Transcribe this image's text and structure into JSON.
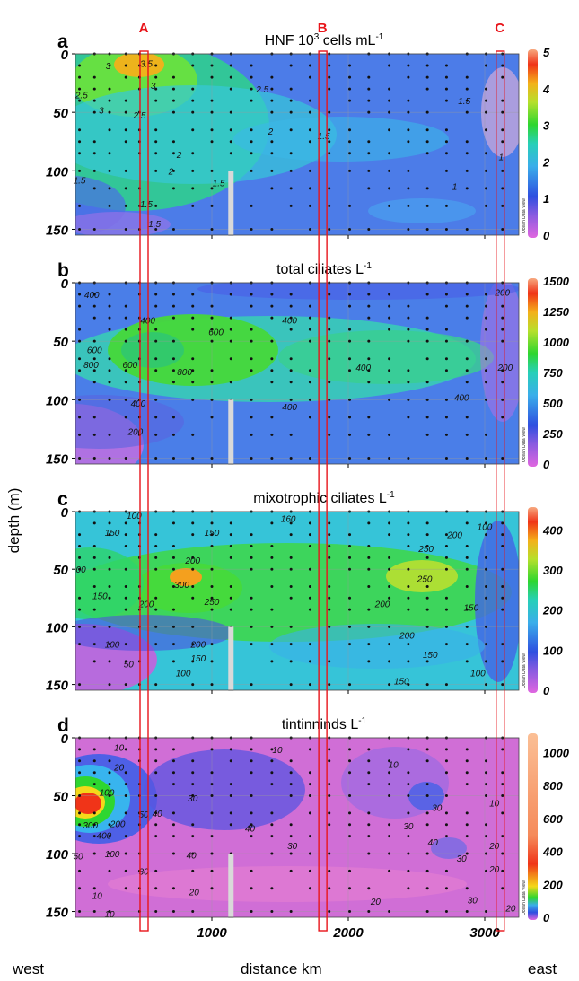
{
  "figure": {
    "ylabel": "depth (m)",
    "xlabel": "distance km",
    "west_label": "west",
    "east_label": "east",
    "watermark": "Ocean Data View",
    "markers": [
      {
        "label": "A",
        "distance_km": 500
      },
      {
        "label": "B",
        "distance_km": 1810
      },
      {
        "label": "C",
        "distance_km": 3110
      }
    ],
    "colors": {
      "marker": "#e8141a",
      "gap_bar": "#d9d9d9",
      "station_dot": "#111111"
    }
  },
  "chart_data": [
    {
      "type": "heatmap",
      "panel": "a",
      "title": "HNF 10",
      "title_sup": "3",
      "title_rest": " cells mL",
      "title_sup2": "-1",
      "xlim": [
        0,
        3250
      ],
      "ylim": [
        155,
        0
      ],
      "xticks": [
        1000,
        2000,
        3000
      ],
      "yticks": [
        0,
        50,
        100,
        150
      ],
      "colorbar_range": [
        0,
        5
      ],
      "colorbar_ticks": [
        0,
        1,
        2,
        3,
        4,
        5
      ],
      "contour_labels": [
        {
          "text": "3",
          "x": 240,
          "y": 10
        },
        {
          "text": "3.5",
          "x": 520,
          "y": 8
        },
        {
          "text": "3",
          "x": 570,
          "y": 27
        },
        {
          "text": "2.5",
          "x": 45,
          "y": 35
        },
        {
          "text": "3",
          "x": 190,
          "y": 48
        },
        {
          "text": "2.5",
          "x": 470,
          "y": 52
        },
        {
          "text": "2.5",
          "x": 1370,
          "y": 30
        },
        {
          "text": "2",
          "x": 1430,
          "y": 66
        },
        {
          "text": "1.5",
          "x": 1820,
          "y": 70
        },
        {
          "text": "1.5",
          "x": 2850,
          "y": 40
        },
        {
          "text": "2",
          "x": 760,
          "y": 86
        },
        {
          "text": "2",
          "x": 700,
          "y": 100
        },
        {
          "text": "1.5",
          "x": 30,
          "y": 108
        },
        {
          "text": "1.5",
          "x": 1050,
          "y": 110
        },
        {
          "text": "1",
          "x": 2780,
          "y": 113
        },
        {
          "text": "1",
          "x": 3120,
          "y": 88
        },
        {
          "text": "1.5",
          "x": 520,
          "y": 128
        },
        {
          "text": "1.5",
          "x": 580,
          "y": 145
        }
      ]
    },
    {
      "type": "heatmap",
      "panel": "b",
      "title": "total ciliates L",
      "title_sup": "-1",
      "xlim": [
        0,
        3250
      ],
      "ylim": [
        155,
        0
      ],
      "xticks": [
        1000,
        2000,
        3000
      ],
      "yticks": [
        0,
        50,
        100,
        150
      ],
      "colorbar_range": [
        0,
        1500
      ],
      "colorbar_ticks": [
        0,
        250,
        500,
        750,
        1000,
        1250,
        1500
      ],
      "contour_labels": [
        {
          "text": "400",
          "x": 120,
          "y": 10
        },
        {
          "text": "400",
          "x": 530,
          "y": 32
        },
        {
          "text": "600",
          "x": 1030,
          "y": 42
        },
        {
          "text": "400",
          "x": 1570,
          "y": 32
        },
        {
          "text": "200",
          "x": 3130,
          "y": 8
        },
        {
          "text": "600",
          "x": 140,
          "y": 57
        },
        {
          "text": "800",
          "x": 115,
          "y": 70
        },
        {
          "text": "600",
          "x": 400,
          "y": 70
        },
        {
          "text": "800",
          "x": 800,
          "y": 76
        },
        {
          "text": "400",
          "x": 2110,
          "y": 72
        },
        {
          "text": "200",
          "x": 3150,
          "y": 72
        },
        {
          "text": "400",
          "x": 460,
          "y": 103
        },
        {
          "text": "400",
          "x": 1570,
          "y": 106
        },
        {
          "text": "400",
          "x": 2830,
          "y": 98
        },
        {
          "text": "200",
          "x": 440,
          "y": 127
        }
      ]
    },
    {
      "type": "heatmap",
      "panel": "c",
      "title": "mixotrophic ciliates L",
      "title_sup": "-1",
      "xlim": [
        0,
        3250
      ],
      "ylim": [
        155,
        0
      ],
      "xticks": [
        1000,
        2000,
        3000
      ],
      "yticks": [
        0,
        50,
        100,
        150
      ],
      "colorbar_range": [
        0,
        450
      ],
      "colorbar_ticks": [
        0,
        100,
        200,
        300,
        400
      ],
      "contour_labels": [
        {
          "text": "100",
          "x": 430,
          "y": 3
        },
        {
          "text": "150",
          "x": 270,
          "y": 18
        },
        {
          "text": "150",
          "x": 1000,
          "y": 18
        },
        {
          "text": "160",
          "x": 1560,
          "y": 6
        },
        {
          "text": "200",
          "x": 2780,
          "y": 20
        },
        {
          "text": "250",
          "x": 2570,
          "y": 32
        },
        {
          "text": "100",
          "x": 3000,
          "y": 13
        },
        {
          "text": "00",
          "x": 40,
          "y": 50
        },
        {
          "text": "200",
          "x": 860,
          "y": 42
        },
        {
          "text": "250",
          "x": 2560,
          "y": 58
        },
        {
          "text": "150",
          "x": 180,
          "y": 73
        },
        {
          "text": "300",
          "x": 780,
          "y": 63
        },
        {
          "text": "250",
          "x": 1000,
          "y": 78
        },
        {
          "text": "200",
          "x": 520,
          "y": 80
        },
        {
          "text": "200",
          "x": 2250,
          "y": 80
        },
        {
          "text": "150",
          "x": 2900,
          "y": 83
        },
        {
          "text": "200",
          "x": 2430,
          "y": 107
        },
        {
          "text": "100",
          "x": 270,
          "y": 115
        },
        {
          "text": "200",
          "x": 900,
          "y": 115
        },
        {
          "text": "150",
          "x": 900,
          "y": 127
        },
        {
          "text": "150",
          "x": 2600,
          "y": 124
        },
        {
          "text": "50",
          "x": 390,
          "y": 132
        },
        {
          "text": "100",
          "x": 790,
          "y": 140
        },
        {
          "text": "150",
          "x": 2390,
          "y": 147
        },
        {
          "text": "100",
          "x": 2950,
          "y": 140
        }
      ]
    },
    {
      "type": "heatmap",
      "panel": "d",
      "title": "tintinninds L",
      "title_sup": "-1",
      "xlim": [
        0,
        3250
      ],
      "ylim": [
        155,
        0
      ],
      "xticks": [
        1000,
        2000,
        3000
      ],
      "yticks": [
        0,
        50,
        100,
        150
      ],
      "colorbar_range": [
        0,
        1100
      ],
      "colorbar_ticks": [
        0,
        200,
        400,
        600,
        800,
        1000
      ],
      "contour_labels": [
        {
          "text": "10",
          "x": 320,
          "y": 8
        },
        {
          "text": "20",
          "x": 320,
          "y": 25
        },
        {
          "text": "10",
          "x": 1480,
          "y": 10
        },
        {
          "text": "10",
          "x": 2330,
          "y": 23
        },
        {
          "text": "100",
          "x": 230,
          "y": 47
        },
        {
          "text": "50",
          "x": 500,
          "y": 66
        },
        {
          "text": "40",
          "x": 600,
          "y": 65
        },
        {
          "text": "30",
          "x": 860,
          "y": 52
        },
        {
          "text": "10",
          "x": 3070,
          "y": 56
        },
        {
          "text": "300",
          "x": 110,
          "y": 75
        },
        {
          "text": "200",
          "x": 310,
          "y": 74
        },
        {
          "text": "400",
          "x": 210,
          "y": 84
        },
        {
          "text": "30",
          "x": 2440,
          "y": 76
        },
        {
          "text": "30",
          "x": 2650,
          "y": 60
        },
        {
          "text": "40",
          "x": 1280,
          "y": 78
        },
        {
          "text": "40",
          "x": 2620,
          "y": 90
        },
        {
          "text": "30",
          "x": 1590,
          "y": 93
        },
        {
          "text": "100",
          "x": 270,
          "y": 100
        },
        {
          "text": "40",
          "x": 850,
          "y": 101
        },
        {
          "text": "30",
          "x": 2830,
          "y": 104
        },
        {
          "text": "20",
          "x": 3070,
          "y": 93
        },
        {
          "text": "20",
          "x": 3070,
          "y": 113
        },
        {
          "text": "50",
          "x": 20,
          "y": 102
        },
        {
          "text": "30",
          "x": 500,
          "y": 115
        },
        {
          "text": "20",
          "x": 870,
          "y": 133
        },
        {
          "text": "20",
          "x": 2200,
          "y": 141
        },
        {
          "text": "30",
          "x": 2910,
          "y": 140
        },
        {
          "text": "20",
          "x": 3190,
          "y": 147
        },
        {
          "text": "10",
          "x": 160,
          "y": 136
        },
        {
          "text": "10",
          "x": 250,
          "y": 152
        }
      ]
    }
  ]
}
